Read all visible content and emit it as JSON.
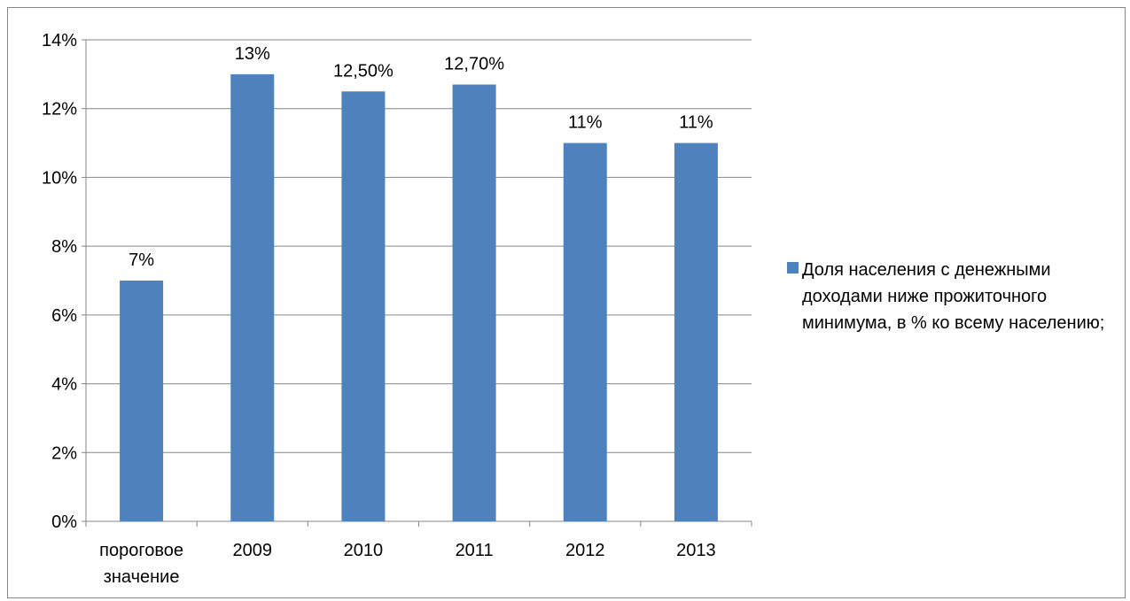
{
  "chart_data": {
    "type": "bar",
    "categories": [
      [
        "пороговое",
        "значение"
      ],
      [
        "2009"
      ],
      [
        "2010"
      ],
      [
        "2011"
      ],
      [
        "2012"
      ],
      [
        "2013"
      ]
    ],
    "series": [
      {
        "name": "Доля населения с денежными доходами ниже прожиточного минимума, в % ко всему населению;",
        "values": [
          7,
          13,
          12.5,
          12.7,
          11,
          11
        ],
        "data_labels": [
          "7%",
          "13%",
          "12,50%",
          "12,70%",
          "11%",
          "11%"
        ],
        "color": "#4F81BD"
      }
    ],
    "y_ticks": [
      "0%",
      "2%",
      "4%",
      "6%",
      "8%",
      "10%",
      "12%",
      "14%"
    ],
    "ylim": [
      0,
      14
    ],
    "title": "",
    "xlabel": "",
    "ylabel": "",
    "grid": true,
    "legend_position": "right"
  },
  "colors": {
    "bar": "#4F81BD",
    "grid": "#868686",
    "axis": "#868686",
    "border": "#868686"
  }
}
